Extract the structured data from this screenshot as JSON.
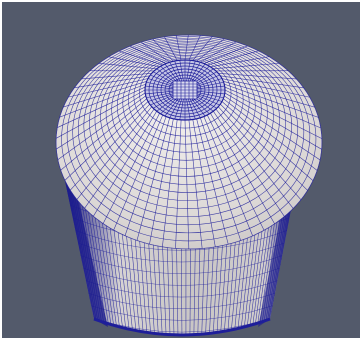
{
  "viewport": {
    "background_color": "#535a6b",
    "frame_color": "#ffffff"
  },
  "model": {
    "shape": "cylinder-with-conical-top",
    "representation": "surface-with-edges",
    "surface_color": "#dedad8",
    "edge_color": "#1e1e9a",
    "side_shade_color": "#1a1a8c"
  }
}
